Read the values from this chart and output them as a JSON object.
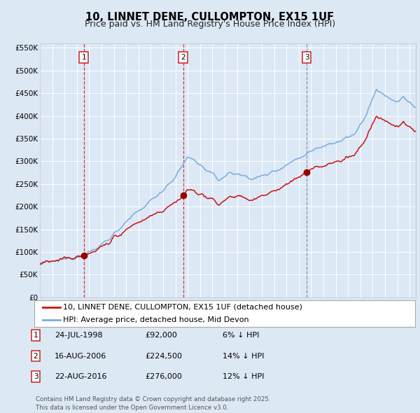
{
  "title": "10, LINNET DENE, CULLOMPTON, EX15 1UF",
  "subtitle": "Price paid vs. HM Land Registry's House Price Index (HPI)",
  "ylim": [
    0,
    560000
  ],
  "yticks": [
    0,
    50000,
    100000,
    150000,
    200000,
    250000,
    300000,
    350000,
    400000,
    450000,
    500000,
    550000
  ],
  "ytick_labels": [
    "£0",
    "£50K",
    "£100K",
    "£150K",
    "£200K",
    "£250K",
    "£300K",
    "£350K",
    "£400K",
    "£450K",
    "£500K",
    "£550K"
  ],
  "xlim_start": 1995.0,
  "xlim_end": 2025.5,
  "background_color": "#dde8f5",
  "plot_bg_color": "#dce8f5",
  "grid_color": "#ffffff",
  "hpi_color": "#7aacde",
  "price_color": "#cc1111",
  "sale_marker_color": "#990000",
  "sale_dates_year": [
    1998.56,
    2006.62,
    2016.64
  ],
  "sale_prices": [
    92000,
    224500,
    276000
  ],
  "sale_labels": [
    "1",
    "2",
    "3"
  ],
  "vline_color_12": "#dd2222",
  "vline_color_3": "#8888aa",
  "legend_house_label": "10, LINNET DENE, CULLOMPTON, EX15 1UF (detached house)",
  "legend_hpi_label": "HPI: Average price, detached house, Mid Devon",
  "table_rows": [
    {
      "num": "1",
      "date": "24-JUL-1998",
      "price": "£92,000",
      "change": "6% ↓ HPI"
    },
    {
      "num": "2",
      "date": "16-AUG-2006",
      "price": "£224,500",
      "change": "14% ↓ HPI"
    },
    {
      "num": "3",
      "date": "22-AUG-2016",
      "price": "£276,000",
      "change": "12% ↓ HPI"
    }
  ],
  "footer": "Contains HM Land Registry data © Crown copyright and database right 2025.\nThis data is licensed under the Open Government Licence v3.0.",
  "title_fontsize": 10.5,
  "subtitle_fontsize": 9,
  "tick_fontsize": 7.5,
  "legend_fontsize": 8
}
